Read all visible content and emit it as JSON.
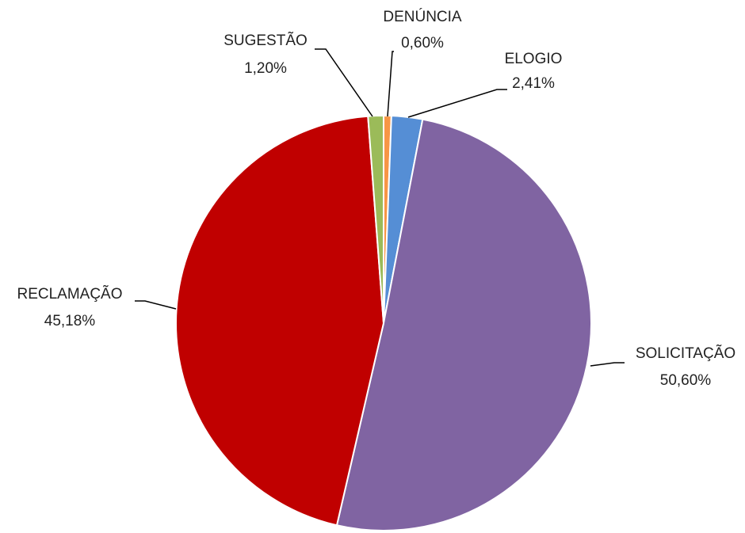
{
  "chart_data": {
    "type": "pie",
    "categories": [
      "DENÚNCIA",
      "ELOGIO",
      "SOLICITAÇÃO",
      "RECLAMAÇÃO",
      "SUGESTÃO"
    ],
    "values": [
      0.6,
      2.41,
      50.6,
      45.18,
      1.2
    ],
    "value_labels": [
      "0,60%",
      "2,41%",
      "50,60%",
      "45,18%",
      "1,20%"
    ],
    "colors": [
      "#f79646",
      "#558ed5",
      "#8064a2",
      "#c00000",
      "#9bbb59"
    ]
  }
}
